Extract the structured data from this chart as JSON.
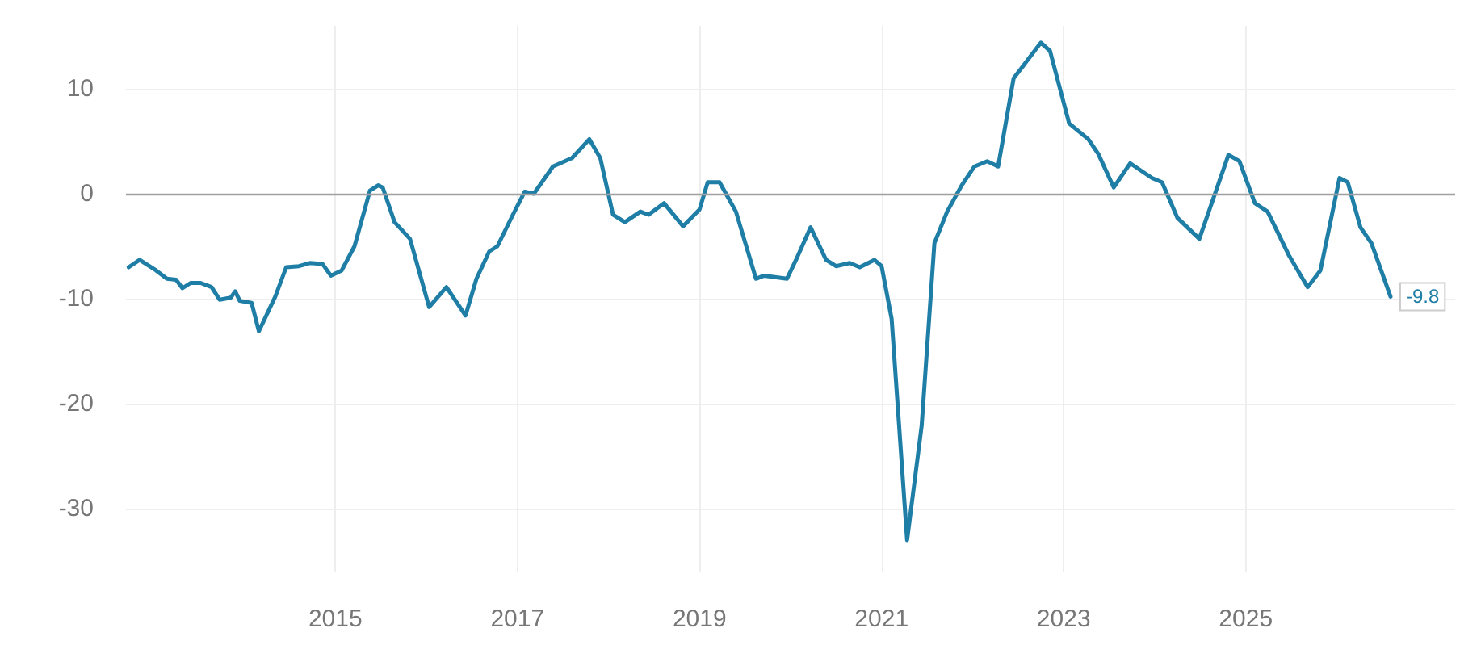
{
  "chart_data": {
    "type": "line",
    "x": [
      2012.73,
      2012.85,
      2013.03,
      2013.15,
      2013.25,
      2013.32,
      2013.41,
      2013.52,
      2013.64,
      2013.73,
      2013.85,
      2013.9,
      2013.95,
      2014.08,
      2014.16,
      2014.34,
      2014.46,
      2014.6,
      2014.72,
      2014.86,
      2014.95,
      2015.07,
      2015.21,
      2015.38,
      2015.47,
      2015.52,
      2015.65,
      2015.82,
      2016.03,
      2016.22,
      2016.43,
      2016.55,
      2016.69,
      2016.78,
      2016.95,
      2017.08,
      2017.18,
      2017.39,
      2017.6,
      2017.79,
      2017.91,
      2018.05,
      2018.18,
      2018.35,
      2018.44,
      2018.61,
      2018.82,
      2019.0,
      2019.09,
      2019.22,
      2019.4,
      2019.62,
      2019.71,
      2019.96,
      2020.06,
      2020.22,
      2020.39,
      2020.5,
      2020.65,
      2020.76,
      2020.92,
      2021.0,
      2021.11,
      2021.28,
      2021.44,
      2021.58,
      2021.72,
      2021.88,
      2022.02,
      2022.16,
      2022.28,
      2022.45,
      2022.75,
      2022.85,
      2023.06,
      2023.27,
      2023.38,
      2023.55,
      2023.73,
      2023.97,
      2024.08,
      2024.25,
      2024.49,
      2024.81,
      2024.93,
      2025.1,
      2025.24,
      2025.47,
      2025.68,
      2025.82,
      2026.03,
      2026.12,
      2026.26,
      2026.38,
      2026.59
    ],
    "series": [
      {
        "color": "#1f7ea6",
        "values": [
          -7.0,
          -6.3,
          -7.3,
          -8.1,
          -8.2,
          -9.0,
          -8.5,
          -8.5,
          -8.9,
          -10.1,
          -9.9,
          -9.3,
          -10.2,
          -10.4,
          -13.1,
          -9.8,
          -7.0,
          -6.9,
          -6.6,
          -6.7,
          -7.8,
          -7.3,
          -5.0,
          0.3,
          0.8,
          0.6,
          -2.7,
          -4.3,
          -10.8,
          -8.9,
          -11.6,
          -8.1,
          -5.5,
          -5.0,
          -2.0,
          0.2,
          0.0,
          2.6,
          3.4,
          5.2,
          3.4,
          -2.0,
          -2.7,
          -1.7,
          -2.0,
          -0.9,
          -3.1,
          -1.5,
          1.1,
          1.1,
          -1.7,
          -8.1,
          -7.8,
          -8.1,
          -6.3,
          -3.2,
          -6.3,
          -6.9,
          -6.6,
          -7.0,
          -6.3,
          -6.9,
          -11.9,
          -33.0,
          -22.1,
          -4.7,
          -1.7,
          0.8,
          2.6,
          3.1,
          2.6,
          11.0,
          14.4,
          13.6,
          6.7,
          5.2,
          3.8,
          0.6,
          2.9,
          1.5,
          1.1,
          -2.3,
          -4.3,
          3.7,
          3.1,
          -0.9,
          -1.7,
          -5.8,
          -8.9,
          -7.3,
          1.5,
          1.1,
          -3.2,
          -4.7,
          -9.8
        ]
      }
    ],
    "xlim": [
      2012.7,
      2027.3
    ],
    "xticks": [
      2015,
      2017,
      2019,
      2021,
      2023,
      2025
    ],
    "ylim": [
      -36,
      16
    ],
    "yticks": [
      -30,
      -20,
      -10,
      0,
      10
    ],
    "ref_lines": [
      {
        "axis": "y",
        "value": 0,
        "color": "#a0a0a0"
      }
    ],
    "annotations": [
      {
        "text": "-9.8",
        "x": 2026.59,
        "y": -9.8
      }
    ],
    "grid": true,
    "marker": "none",
    "line_style": "solid"
  }
}
